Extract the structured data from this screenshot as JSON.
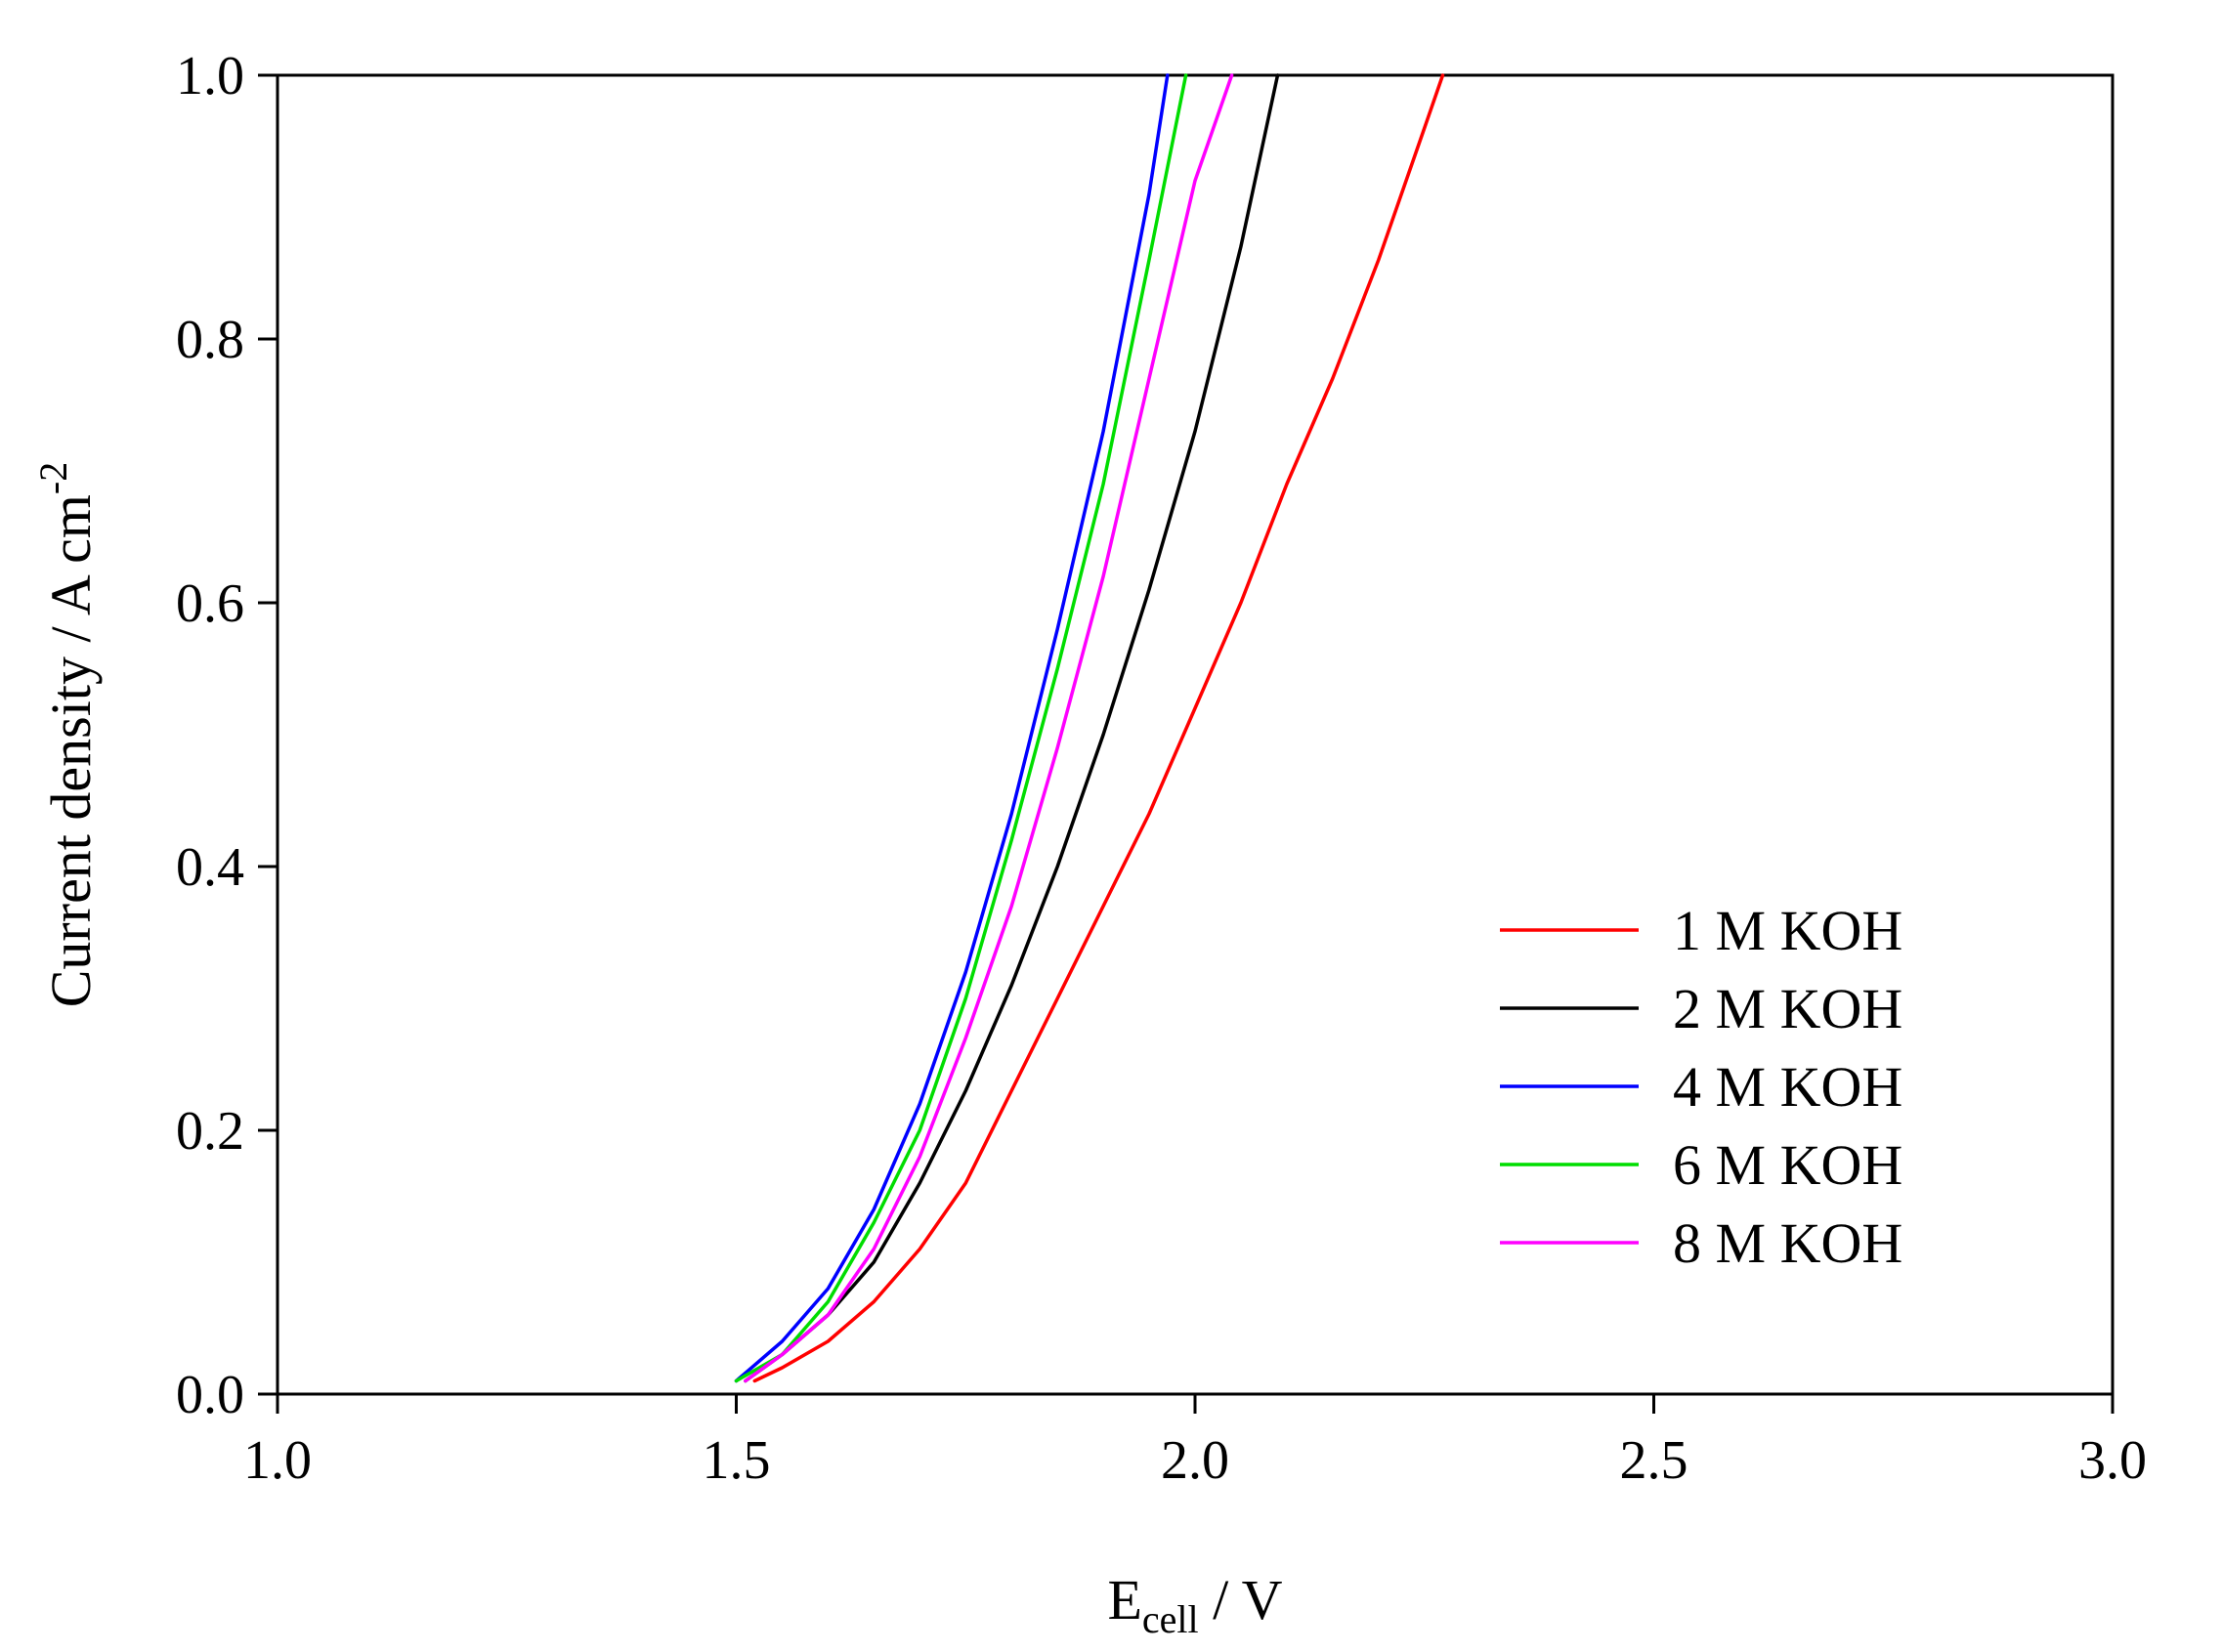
{
  "chart_data": {
    "type": "line",
    "title": "",
    "xlabel_main": "E",
    "xlabel_sub": "cell",
    "xlabel_rest": " / V",
    "ylabel_main": "Current density / A cm",
    "ylabel_sup": "-2",
    "xlim": [
      1.0,
      3.0
    ],
    "ylim": [
      0.0,
      1.0
    ],
    "x_ticks": [
      1.0,
      1.5,
      2.0,
      2.5,
      3.0
    ],
    "x_tick_labels": [
      "1.0",
      "1.5",
      "2.0",
      "2.5",
      "3.0"
    ],
    "y_ticks": [
      0.0,
      0.2,
      0.4,
      0.6,
      0.8,
      1.0
    ],
    "y_tick_labels": [
      "0.0",
      "0.2",
      "0.4",
      "0.6",
      "0.8",
      "1.0"
    ],
    "grid": false,
    "legend_position": "bottom-right",
    "series": [
      {
        "name": "1 M KOH",
        "color": "#ff0000",
        "x": [
          1.52,
          1.55,
          1.6,
          1.65,
          1.7,
          1.75,
          1.8,
          1.85,
          1.9,
          1.95,
          2.0,
          2.05,
          2.1,
          2.15,
          2.2,
          2.25,
          2.27
        ],
        "y": [
          0.01,
          0.02,
          0.04,
          0.07,
          0.11,
          0.16,
          0.23,
          0.3,
          0.37,
          0.44,
          0.52,
          0.6,
          0.69,
          0.77,
          0.86,
          0.96,
          1.0
        ]
      },
      {
        "name": "2 M KOH",
        "color": "#000000",
        "x": [
          1.51,
          1.55,
          1.6,
          1.65,
          1.7,
          1.75,
          1.8,
          1.85,
          1.9,
          1.95,
          2.0,
          2.05,
          2.09
        ],
        "y": [
          0.01,
          0.03,
          0.06,
          0.1,
          0.16,
          0.23,
          0.31,
          0.4,
          0.5,
          0.61,
          0.73,
          0.87,
          1.0
        ]
      },
      {
        "name": "4 M KOH",
        "color": "#0000ff",
        "x": [
          1.5,
          1.55,
          1.6,
          1.65,
          1.7,
          1.75,
          1.8,
          1.85,
          1.9,
          1.95,
          1.97
        ],
        "y": [
          0.01,
          0.04,
          0.08,
          0.14,
          0.22,
          0.32,
          0.44,
          0.58,
          0.73,
          0.91,
          1.0
        ]
      },
      {
        "name": "6 M KOH",
        "color": "#00dd00",
        "x": [
          1.5,
          1.55,
          1.6,
          1.65,
          1.7,
          1.75,
          1.8,
          1.85,
          1.9,
          1.95,
          1.99
        ],
        "y": [
          0.01,
          0.03,
          0.07,
          0.13,
          0.2,
          0.3,
          0.42,
          0.55,
          0.69,
          0.86,
          1.0
        ]
      },
      {
        "name": "8 M KOH",
        "color": "#ff00ff",
        "x": [
          1.51,
          1.55,
          1.6,
          1.65,
          1.7,
          1.75,
          1.8,
          1.85,
          1.9,
          1.95,
          2.0,
          2.04
        ],
        "y": [
          0.01,
          0.03,
          0.06,
          0.11,
          0.18,
          0.27,
          0.37,
          0.49,
          0.62,
          0.77,
          0.92,
          1.0
        ]
      }
    ]
  }
}
